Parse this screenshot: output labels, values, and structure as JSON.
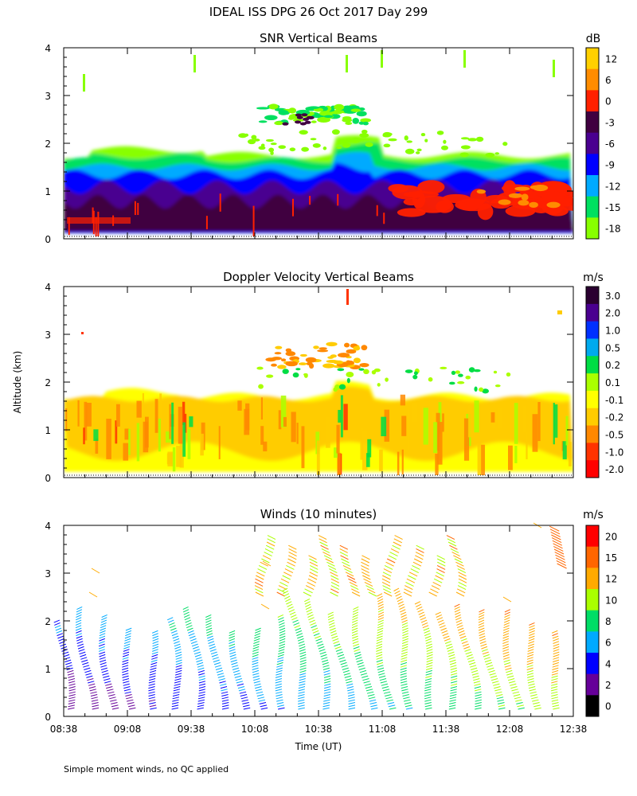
{
  "title": "IDEAL ISS DPG  26 Oct 2017 Day 299",
  "ylabel": "Altitude (km)",
  "xlabel": "Time (UT)",
  "footnote": "Simple moment winds, no QC applied",
  "chart_data": [
    {
      "type": "heatmap",
      "title": "SNR Vertical Beams",
      "xlabel": "Time (UT)",
      "ylabel": "Altitude (km)",
      "ylim": [
        0,
        4
      ],
      "yticks": [
        "0",
        "1",
        "2",
        "3",
        "4"
      ],
      "xlim_minutes": [
        518,
        758
      ],
      "colorbar": {
        "unit": "dB",
        "labels": [
          "12",
          "6",
          "0",
          "-3",
          "-6",
          "-9",
          "-12",
          "-15",
          "-18"
        ],
        "colors": [
          "#ffd000",
          "#ff8c00",
          "#ff2000",
          "#400040",
          "#4a0090",
          "#0000ff",
          "#00aaff",
          "#00e060",
          "#88ff00"
        ]
      },
      "layer_top_km": 1.7,
      "high_echo_km": [
        2.4,
        2.8
      ]
    },
    {
      "type": "heatmap",
      "title": "Doppler Velocity Vertical Beams",
      "xlabel": "Time (UT)",
      "ylabel": "Altitude (km)",
      "ylim": [
        0,
        4
      ],
      "yticks": [
        "0",
        "1",
        "2",
        "3",
        "4"
      ],
      "xlim_minutes": [
        518,
        758
      ],
      "colorbar": {
        "unit": "m/s",
        "labels": [
          "3.0",
          "2.0",
          "1.0",
          "0.5",
          "0.2",
          "0.1",
          "-0.1",
          "-0.2",
          "-0.5",
          "-1.0",
          "-2.0"
        ],
        "colors": [
          "#2a0030",
          "#4a0090",
          "#0030ff",
          "#00aaee",
          "#00dd44",
          "#aaff00",
          "#ffff00",
          "#ffcc00",
          "#ff8800",
          "#ff3300",
          "#ff0000"
        ]
      },
      "layer_top_km": 1.8
    },
    {
      "type": "scatter",
      "title": "Winds (10 minutes)",
      "xlabel": "Time (UT)",
      "ylabel": "Altitude (km)",
      "ylim": [
        0,
        4
      ],
      "yticks": [
        "0",
        "1",
        "2",
        "3",
        "4"
      ],
      "xticks": [
        "08:38",
        "09:08",
        "09:38",
        "10:08",
        "10:38",
        "11:08",
        "11:38",
        "12:08",
        "12:38"
      ],
      "x_tick_minutes": [
        518,
        548,
        578,
        608,
        638,
        668,
        698,
        728,
        758
      ],
      "xlim_minutes": [
        518,
        758
      ],
      "profile_times_minutes": [
        521,
        531,
        541,
        551,
        561,
        571,
        581,
        591,
        601,
        611,
        621,
        631,
        641,
        651,
        661,
        671,
        681,
        691,
        701,
        711,
        721,
        731,
        741,
        751
      ],
      "colorbar": {
        "unit": "m/s",
        "labels": [
          "20",
          "15",
          "12",
          "10",
          "8",
          "6",
          "4",
          "2",
          "0"
        ],
        "colors": [
          "#ff0000",
          "#ff6600",
          "#ffaa00",
          "#aaff00",
          "#00dd66",
          "#00aaff",
          "#0000ff",
          "#660099",
          "#000000"
        ]
      }
    }
  ]
}
